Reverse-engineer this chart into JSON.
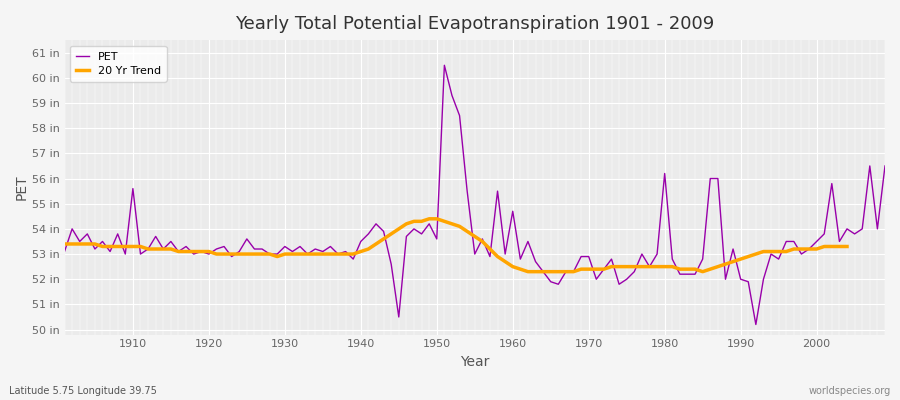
{
  "title": "Yearly Total Potential Evapotranspiration 1901 - 2009",
  "xlabel": "Year",
  "ylabel": "PET",
  "subtitle_left": "Latitude 5.75 Longitude 39.75",
  "subtitle_right": "worldspecies.org",
  "pet_color": "#9900aa",
  "trend_color": "#FFA500",
  "bg_color": "#f5f5f5",
  "plot_bg_color": "#ebebeb",
  "ylim": [
    49.8,
    61.5
  ],
  "yticks": [
    50,
    51,
    52,
    53,
    54,
    55,
    56,
    57,
    58,
    59,
    60,
    61
  ],
  "ytick_labels": [
    "50 in",
    "51 in",
    "52 in",
    "53 in",
    "54 in",
    "55 in",
    "56 in",
    "57 in",
    "58 in",
    "59 in",
    "60 in",
    "61 in"
  ],
  "years": [
    1901,
    1902,
    1903,
    1904,
    1905,
    1906,
    1907,
    1908,
    1909,
    1910,
    1911,
    1912,
    1913,
    1914,
    1915,
    1916,
    1917,
    1918,
    1919,
    1920,
    1921,
    1922,
    1923,
    1924,
    1925,
    1926,
    1927,
    1928,
    1929,
    1930,
    1931,
    1932,
    1933,
    1934,
    1935,
    1936,
    1937,
    1938,
    1939,
    1940,
    1941,
    1942,
    1943,
    1944,
    1945,
    1946,
    1947,
    1948,
    1949,
    1950,
    1951,
    1952,
    1953,
    1954,
    1955,
    1956,
    1957,
    1958,
    1959,
    1960,
    1961,
    1962,
    1963,
    1964,
    1965,
    1966,
    1967,
    1968,
    1969,
    1970,
    1971,
    1972,
    1973,
    1974,
    1975,
    1976,
    1977,
    1978,
    1979,
    1980,
    1981,
    1982,
    1983,
    1984,
    1985,
    1986,
    1987,
    1988,
    1989,
    1990,
    1991,
    1992,
    1993,
    1994,
    1995,
    1996,
    1997,
    1998,
    1999,
    2000,
    2001,
    2002,
    2003,
    2004,
    2005,
    2006,
    2007,
    2008,
    2009
  ],
  "pet_values": [
    53.1,
    54.0,
    53.5,
    53.8,
    53.2,
    53.5,
    53.1,
    53.8,
    53.0,
    55.6,
    53.0,
    53.2,
    53.7,
    53.2,
    53.5,
    53.1,
    53.3,
    53.0,
    53.1,
    53.0,
    53.2,
    53.3,
    52.9,
    53.1,
    53.6,
    53.2,
    53.2,
    53.0,
    53.0,
    53.3,
    53.1,
    53.3,
    53.0,
    53.2,
    53.1,
    53.3,
    53.0,
    53.1,
    52.8,
    53.5,
    53.8,
    54.2,
    53.9,
    52.6,
    50.5,
    53.7,
    54.0,
    53.8,
    54.2,
    53.6,
    60.5,
    59.3,
    58.5,
    55.5,
    53.0,
    53.6,
    52.9,
    55.5,
    53.0,
    54.7,
    52.8,
    53.5,
    52.7,
    52.3,
    51.9,
    51.8,
    52.3,
    52.3,
    52.9,
    52.9,
    52.0,
    52.4,
    52.8,
    51.8,
    52.0,
    52.3,
    53.0,
    52.5,
    53.0,
    56.2,
    52.8,
    52.2,
    52.2,
    52.2,
    52.8,
    56.0,
    56.0,
    52.0,
    53.2,
    52.0,
    51.9,
    50.2,
    52.0,
    53.0,
    52.8,
    53.5,
    53.5,
    53.0,
    53.2,
    53.5,
    53.8,
    55.8,
    53.5,
    54.0,
    53.8,
    54.0,
    56.5,
    54.0,
    56.5
  ],
  "trend_values": [
    53.4,
    53.4,
    53.4,
    53.4,
    53.4,
    53.3,
    53.3,
    53.3,
    53.3,
    53.3,
    53.3,
    53.2,
    53.2,
    53.2,
    53.2,
    53.1,
    53.1,
    53.1,
    53.1,
    53.1,
    53.0,
    53.0,
    53.0,
    53.0,
    53.0,
    53.0,
    53.0,
    53.0,
    52.9,
    53.0,
    53.0,
    53.0,
    53.0,
    53.0,
    53.0,
    53.0,
    53.0,
    53.0,
    53.0,
    53.1,
    53.2,
    53.4,
    53.6,
    53.8,
    54.0,
    54.2,
    54.3,
    54.3,
    54.4,
    54.4,
    54.3,
    54.2,
    54.1,
    53.9,
    53.7,
    53.5,
    53.2,
    52.9,
    52.7,
    52.5,
    52.4,
    52.3,
    52.3,
    52.3,
    52.3,
    52.3,
    52.3,
    52.3,
    52.4,
    52.4,
    52.4,
    52.4,
    52.5,
    52.5,
    52.5,
    52.5,
    52.5,
    52.5,
    52.5,
    52.5,
    52.5,
    52.4,
    52.4,
    52.4,
    52.3,
    52.4,
    52.5,
    52.6,
    52.7,
    52.8,
    52.9,
    53.0,
    53.1,
    53.1,
    53.1,
    53.1,
    53.2,
    53.2,
    53.2,
    53.2,
    53.3,
    53.3,
    53.3,
    53.3,
    null,
    null,
    null,
    null,
    null
  ]
}
